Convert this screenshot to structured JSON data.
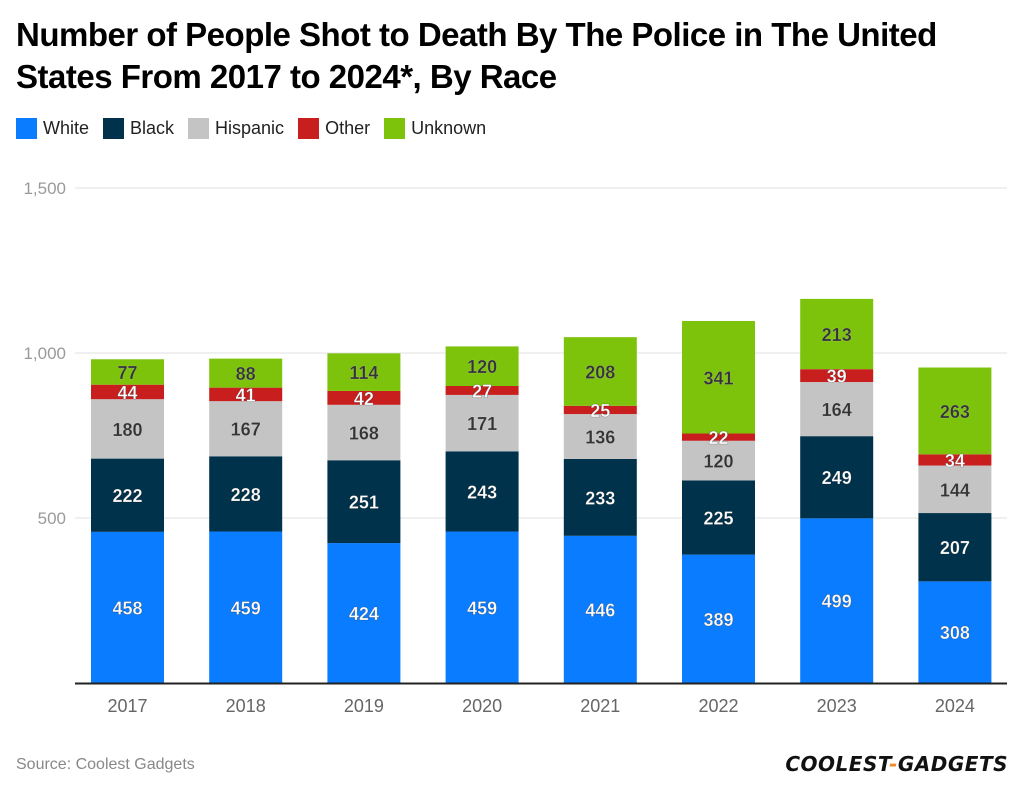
{
  "chart_data": {
    "type": "bar",
    "stacked": true,
    "title": "Number of People Shot to Death By The Police in The United States From 2017 to 2024*, By Race",
    "xlabel": "",
    "ylabel": "",
    "ylim": [
      0,
      1500
    ],
    "yticks": [
      500,
      1000,
      1500
    ],
    "ytick_labels": [
      "500",
      "1,000",
      "1,500"
    ],
    "grid": true,
    "legend_position": "top-left",
    "categories": [
      "2017",
      "2018",
      "2019",
      "2020",
      "2021",
      "2022",
      "2023",
      "2024"
    ],
    "series": [
      {
        "name": "White",
        "color": "#0a7cff",
        "label_color": "#ffffff",
        "values": [
          458,
          459,
          424,
          459,
          446,
          389,
          499,
          308
        ]
      },
      {
        "name": "Black",
        "color": "#01324b",
        "label_color": "#ffffff",
        "values": [
          222,
          228,
          251,
          243,
          233,
          225,
          249,
          207
        ]
      },
      {
        "name": "Hispanic",
        "color": "#c4c4c4",
        "label_color": "#333333",
        "values": [
          180,
          167,
          168,
          171,
          136,
          120,
          164,
          144
        ]
      },
      {
        "name": "Other",
        "color": "#c81e1e",
        "label_color": "#ffffff",
        "values": [
          44,
          41,
          42,
          27,
          25,
          22,
          39,
          34
        ]
      },
      {
        "name": "Unknown",
        "color": "#7dc30b",
        "label_color": "#333333",
        "values": [
          77,
          88,
          114,
          120,
          208,
          341,
          213,
          263
        ]
      }
    ]
  },
  "footer": {
    "source": "Source: Coolest Gadgets",
    "logo_left": "COOLEST",
    "logo_dash": "-",
    "logo_right": "GADGETS"
  }
}
